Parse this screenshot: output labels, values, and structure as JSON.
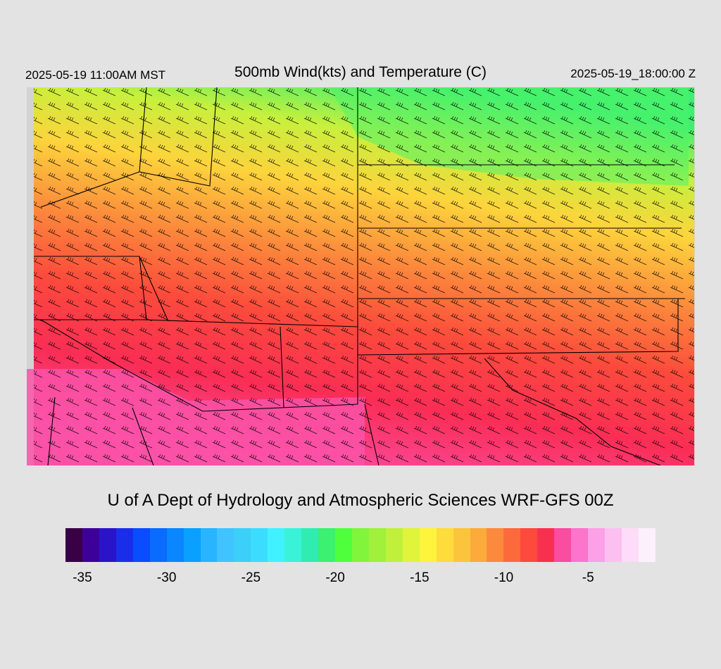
{
  "header": {
    "valid_local": "2025-05-19 11:00AM MST",
    "title": "500mb Wind(kts) and Temperature (C)",
    "valid_utc": "2025-05-19_18:00:00 Z"
  },
  "footer": {
    "credit": "U of A Dept of Hydrology and Atmospheric Sciences WRF-GFS 00Z"
  },
  "colorbar": {
    "colors": [
      "#3a0046",
      "#3d0099",
      "#2a14c8",
      "#1a2eea",
      "#0a4cff",
      "#0a6cff",
      "#0a86ff",
      "#0aa0ff",
      "#28b4ff",
      "#40c4ff",
      "#3ccff8",
      "#3cdcff",
      "#40f2ff",
      "#3af2d8",
      "#30ecb0",
      "#3cf070",
      "#50ff3c",
      "#80f53c",
      "#a0f03c",
      "#c0f03c",
      "#e0f43c",
      "#fff43c",
      "#fddc3c",
      "#fcc43c",
      "#fcaa3c",
      "#fc8a3c",
      "#fc6a3c",
      "#fc4a3c",
      "#f83050",
      "#fa4ca0",
      "#fc74cc",
      "#fca0e8",
      "#fcc0f0",
      "#fcdcf8",
      "#fcf0fc"
    ],
    "ticks": [
      "-35",
      "-30",
      "-25",
      "-20",
      "-15",
      "-10",
      "-5"
    ]
  }
}
